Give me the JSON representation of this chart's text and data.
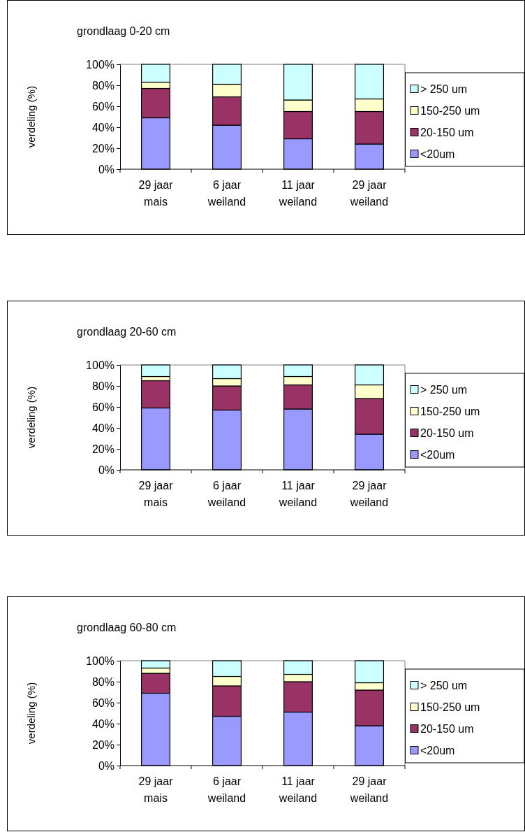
{
  "chart_data": [
    {
      "type": "bar",
      "title": "grondlaag 0-20 cm",
      "ylabel": "verdeling (%)",
      "stacked": true,
      "legend": "right",
      "grid": false,
      "categories": [
        "29 jaar mais",
        "6 jaar weiland",
        "11 jaar weiland",
        "29 jaar weiland"
      ],
      "ylim": [
        0,
        100
      ],
      "yticks": [
        {
          "value": 0,
          "label": "0%"
        },
        {
          "value": 20,
          "label": "20%"
        },
        {
          "value": 40,
          "label": "40%"
        },
        {
          "value": 60,
          "label": "60%"
        },
        {
          "value": 80,
          "label": "80%"
        },
        {
          "value": 100,
          "label": "100%"
        }
      ],
      "series": [
        {
          "name": "<20um",
          "color": "#9999ff",
          "values": [
            49,
            42,
            29,
            24
          ]
        },
        {
          "name": "20-150 um",
          "color": "#993366",
          "values": [
            28,
            27,
            26,
            31
          ]
        },
        {
          "name": "150-250 um",
          "color": "#ffffcc",
          "values": [
            6,
            12,
            11,
            12
          ]
        },
        {
          "name": "> 250 um",
          "color": "#ccffff",
          "values": [
            17,
            19,
            34,
            33
          ]
        }
      ]
    },
    {
      "type": "bar",
      "title": "grondlaag 20-60 cm",
      "ylabel": "verdeling (%)",
      "stacked": true,
      "legend": "right",
      "grid": false,
      "categories": [
        "29 jaar mais",
        "6 jaar weiland",
        "11 jaar weiland",
        "29 jaar weiland"
      ],
      "ylim": [
        0,
        100
      ],
      "yticks": [
        {
          "value": 0,
          "label": "0%"
        },
        {
          "value": 20,
          "label": "20%"
        },
        {
          "value": 40,
          "label": "40%"
        },
        {
          "value": 60,
          "label": "60%"
        },
        {
          "value": 80,
          "label": "80%"
        },
        {
          "value": 100,
          "label": "100%"
        }
      ],
      "series": [
        {
          "name": "<20um",
          "color": "#9999ff",
          "values": [
            59,
            57,
            58,
            34
          ]
        },
        {
          "name": "20-150 um",
          "color": "#993366",
          "values": [
            26,
            23,
            23,
            34
          ]
        },
        {
          "name": "150-250 um",
          "color": "#ffffcc",
          "values": [
            4,
            7,
            8,
            13
          ]
        },
        {
          "name": "> 250 um",
          "color": "#ccffff",
          "values": [
            11,
            13,
            11,
            19
          ]
        }
      ]
    },
    {
      "type": "bar",
      "title": "grondlaag 60-80 cm",
      "ylabel": "verdeling (%)",
      "stacked": true,
      "legend": "right",
      "grid": false,
      "categories": [
        "29 jaar mais",
        "6 jaar weiland",
        "11 jaar weiland",
        "29 jaar weiland"
      ],
      "ylim": [
        0,
        100
      ],
      "yticks": [
        {
          "value": 0,
          "label": "0%"
        },
        {
          "value": 20,
          "label": "20%"
        },
        {
          "value": 40,
          "label": "40%"
        },
        {
          "value": 60,
          "label": "60%"
        },
        {
          "value": 80,
          "label": "80%"
        },
        {
          "value": 100,
          "label": "100%"
        }
      ],
      "series": [
        {
          "name": "<20um",
          "color": "#9999ff",
          "values": [
            69,
            47,
            51,
            38
          ]
        },
        {
          "name": "20-150 um",
          "color": "#993366",
          "values": [
            19,
            29,
            29,
            34
          ]
        },
        {
          "name": "150-250 um",
          "color": "#ffffcc",
          "values": [
            5,
            9,
            7,
            7
          ]
        },
        {
          "name": "> 250 um",
          "color": "#ccffff",
          "values": [
            7,
            15,
            13,
            21
          ]
        }
      ]
    }
  ]
}
